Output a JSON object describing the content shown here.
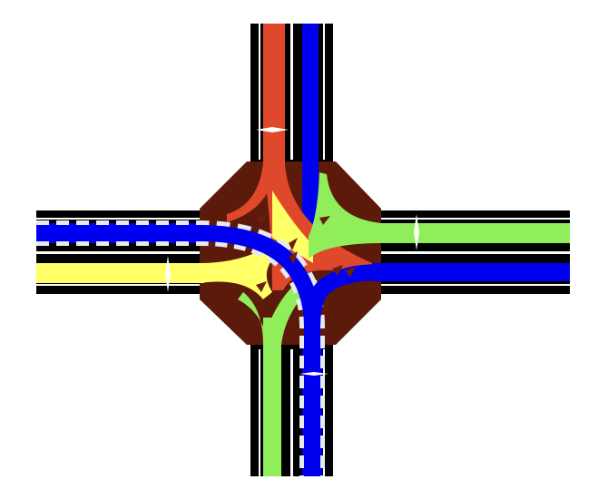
{
  "colors": {
    "background": "#ffffff",
    "asphalt": "#000000",
    "junction": "#5c1a0a",
    "lane_marking": "#ffffff",
    "route_red": "#e0482c",
    "route_blue": "#0000f0",
    "route_green": "#90ee5a",
    "route_yellow": "#ffff66",
    "turn_arrow": "#6a1e0e"
  }
}
